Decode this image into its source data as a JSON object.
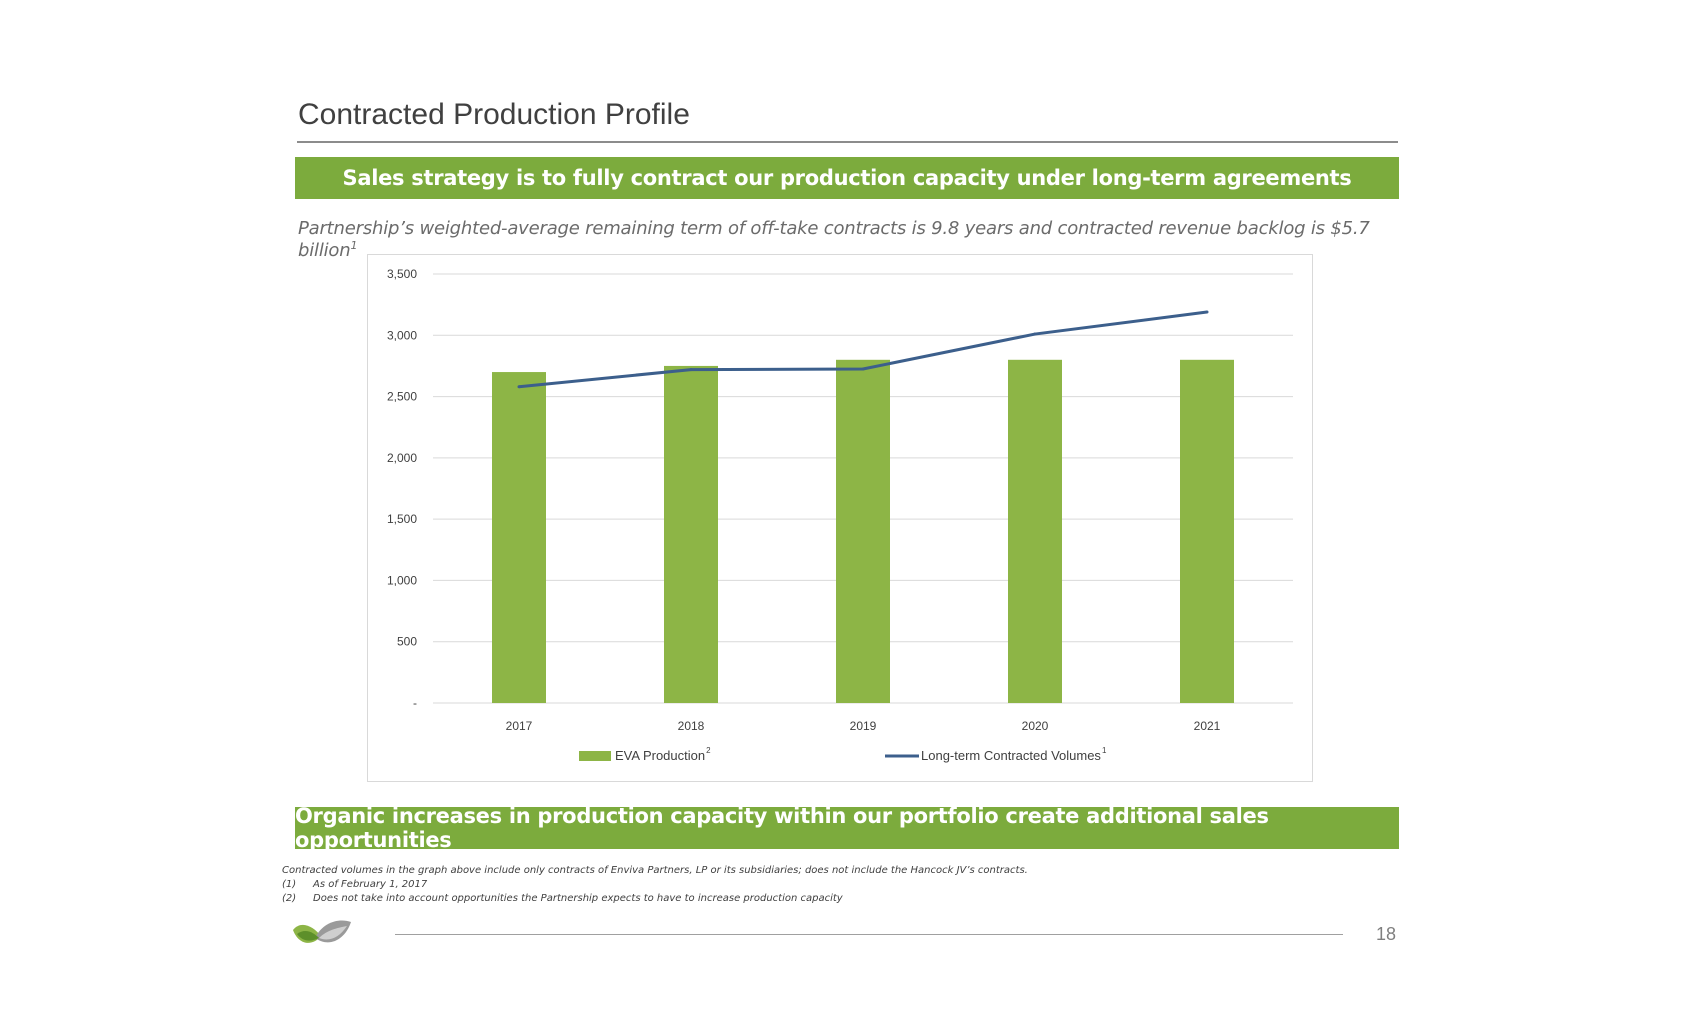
{
  "slide": {
    "title": "Contracted Production Profile",
    "banner_top": "Sales strategy is to fully contract our production capacity under long-term agreements",
    "subtitle": "Partnership’s weighted-average remaining term of off-take contracts is 9.8 years and contracted revenue backlog is $5.7 billion",
    "subtitle_sup": "1",
    "banner_bottom": "Organic increases in production capacity within our portfolio create additional sales opportunities",
    "footnote_intro": "Contracted volumes in the graph above include only contracts of Enviva Partners, LP or its subsidiaries; does not include the Hancock JV’s contracts.",
    "footnotes": [
      {
        "num": "(1)",
        "text": "As of February 1, 2017"
      },
      {
        "num": "(2)",
        "text": "Does not take into account opportunities the Partnership expects to have to increase production capacity"
      }
    ],
    "page_number": "18",
    "logo_icon": "enviva-logo-icon"
  },
  "colors": {
    "accent_green": "#7cab3d",
    "bar_green": "#8db546",
    "line_blue": "#3c5f8c"
  },
  "chart_data": {
    "type": "bar",
    "categories": [
      "2017",
      "2018",
      "2019",
      "2020",
      "2021"
    ],
    "series": [
      {
        "name": "EVA Production",
        "name_sup": "2",
        "kind": "bar",
        "values": [
          2700,
          2750,
          2800,
          2800,
          2800
        ]
      },
      {
        "name": "Long-term Contracted Volumes",
        "name_sup": "1",
        "kind": "line",
        "values": [
          2580,
          2720,
          2725,
          3010,
          3190
        ]
      }
    ],
    "ylim": [
      0,
      3500
    ],
    "yticks": [
      0,
      500,
      1000,
      1500,
      2000,
      2500,
      3000,
      3500
    ],
    "ytick_labels": [
      "-",
      "500",
      "1,000",
      "1,500",
      "2,000",
      "2,500",
      "3,000",
      "3,500"
    ],
    "grid": true,
    "legend_position": "bottom"
  }
}
